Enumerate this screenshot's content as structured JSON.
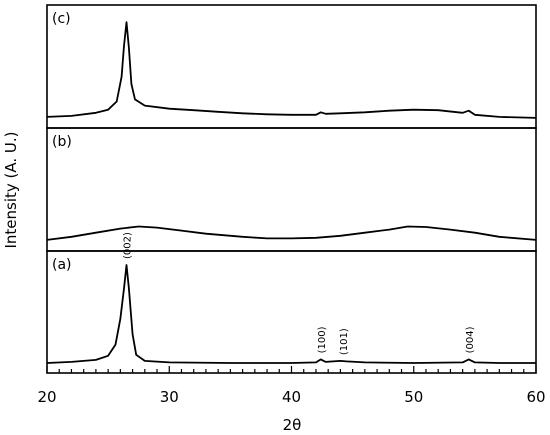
{
  "chart_data": {
    "type": "line",
    "xlabel": "2θ",
    "ylabel": "Intensity (A. U.)",
    "xlim": [
      20,
      60
    ],
    "x_ticks": [
      "20",
      "30",
      "40",
      "50",
      "60"
    ],
    "y_ticks_shown": false,
    "grid": false,
    "layout": "three vertically stacked panels, shared x-axis",
    "panels": [
      {
        "label": "(c)",
        "series": {
          "points": [
            [
              20,
              0.03
            ],
            [
              22,
              0.04
            ],
            [
              24,
              0.07
            ],
            [
              25,
              0.1
            ],
            [
              25.7,
              0.18
            ],
            [
              26.1,
              0.42
            ],
            [
              26.3,
              0.72
            ],
            [
              26.5,
              0.95
            ],
            [
              26.7,
              0.7
            ],
            [
              26.9,
              0.35
            ],
            [
              27.2,
              0.2
            ],
            [
              28,
              0.14
            ],
            [
              30,
              0.11
            ],
            [
              32,
              0.095
            ],
            [
              34,
              0.08
            ],
            [
              36,
              0.065
            ],
            [
              38,
              0.055
            ],
            [
              40,
              0.05
            ],
            [
              42,
              0.05
            ],
            [
              42.4,
              0.075
            ],
            [
              42.8,
              0.06
            ],
            [
              44,
              0.065
            ],
            [
              46,
              0.075
            ],
            [
              48,
              0.09
            ],
            [
              50,
              0.1
            ],
            [
              52,
              0.095
            ],
            [
              54,
              0.07
            ],
            [
              54.5,
              0.09
            ],
            [
              55,
              0.05
            ],
            [
              57,
              0.03
            ],
            [
              60,
              0.02
            ]
          ]
        }
      },
      {
        "label": "(b)",
        "series": {
          "points": [
            [
              20,
              0.03
            ],
            [
              22,
              0.06
            ],
            [
              24,
              0.1
            ],
            [
              26,
              0.14
            ],
            [
              27.5,
              0.16
            ],
            [
              29,
              0.15
            ],
            [
              31,
              0.12
            ],
            [
              33,
              0.09
            ],
            [
              36,
              0.06
            ],
            [
              38,
              0.045
            ],
            [
              40,
              0.045
            ],
            [
              42,
              0.05
            ],
            [
              44,
              0.07
            ],
            [
              46,
              0.1
            ],
            [
              48,
              0.13
            ],
            [
              49.5,
              0.16
            ],
            [
              51,
              0.155
            ],
            [
              53,
              0.13
            ],
            [
              55,
              0.1
            ],
            [
              57,
              0.06
            ],
            [
              60,
              0.03
            ]
          ]
        }
      },
      {
        "label": "(a)",
        "series": {
          "points": [
            [
              20,
              0.02
            ],
            [
              22,
              0.03
            ],
            [
              24,
              0.05
            ],
            [
              25,
              0.09
            ],
            [
              25.6,
              0.2
            ],
            [
              26,
              0.45
            ],
            [
              26.3,
              0.75
            ],
            [
              26.5,
              0.98
            ],
            [
              26.7,
              0.75
            ],
            [
              27,
              0.3
            ],
            [
              27.3,
              0.1
            ],
            [
              28,
              0.04
            ],
            [
              30,
              0.025
            ],
            [
              35,
              0.02
            ],
            [
              40,
              0.02
            ],
            [
              42,
              0.025
            ],
            [
              42.4,
              0.055
            ],
            [
              42.8,
              0.03
            ],
            [
              44,
              0.04
            ],
            [
              44.5,
              0.035
            ],
            [
              46,
              0.025
            ],
            [
              50,
              0.02
            ],
            [
              54,
              0.025
            ],
            [
              54.5,
              0.055
            ],
            [
              55,
              0.025
            ],
            [
              57,
              0.02
            ],
            [
              60,
              0.02
            ]
          ]
        },
        "annotations": [
          {
            "x": 26.5,
            "text": "(002)"
          },
          {
            "x": 42.4,
            "text": "(100)"
          },
          {
            "x": 44.2,
            "text": "(101)"
          },
          {
            "x": 54.5,
            "text": "(004)"
          }
        ]
      }
    ]
  }
}
